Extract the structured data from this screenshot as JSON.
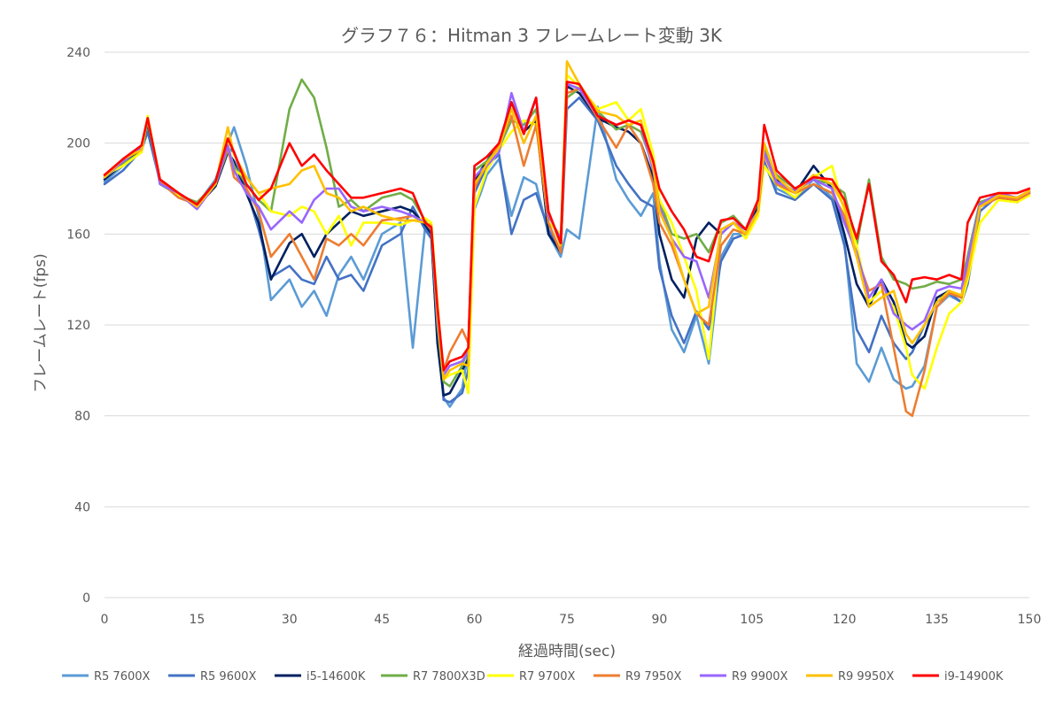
{
  "chart_data": {
    "type": "line",
    "title": "グラフ７６：Hitman 3 フレームレート変動 3K",
    "xlabel": "経過時間(sec)",
    "ylabel": "フレームレート(fps)",
    "xlim": [
      0,
      150
    ],
    "ylim": [
      0,
      240
    ],
    "x_ticks": [
      0,
      15,
      30,
      45,
      60,
      75,
      90,
      105,
      120,
      135,
      150
    ],
    "y_ticks": [
      0,
      40,
      80,
      120,
      160,
      200,
      240
    ],
    "grid": "horizontal",
    "legend_position": "bottom",
    "x": [
      0,
      3,
      6,
      7,
      9,
      12,
      15,
      18,
      20,
      21,
      23,
      25,
      27,
      30,
      32,
      34,
      36,
      38,
      40,
      42,
      45,
      48,
      50,
      52,
      53,
      54,
      55,
      56,
      58,
      59,
      60,
      61,
      62,
      64,
      66,
      68,
      70,
      72,
      74,
      75,
      77,
      80,
      83,
      85,
      87,
      89,
      90,
      92,
      94,
      96,
      98,
      100,
      102,
      104,
      106,
      107,
      109,
      112,
      115,
      118,
      120,
      122,
      124,
      126,
      128,
      130,
      131,
      133,
      135,
      137,
      139,
      140,
      142,
      145,
      148,
      150
    ],
    "series": [
      {
        "name": "R5 7600X",
        "color": "#5B9BD5",
        "values": [
          183,
          190,
          198,
          206,
          184,
          178,
          173,
          184,
          200,
          207,
          190,
          168,
          131,
          140,
          128,
          135,
          124,
          142,
          150,
          140,
          160,
          165,
          110,
          163,
          160,
          120,
          88,
          84,
          92,
          108,
          171,
          178,
          186,
          193,
          168,
          185,
          182,
          160,
          150,
          162,
          158,
          216,
          184,
          175,
          168,
          178,
          148,
          118,
          108,
          124,
          103,
          150,
          160,
          160,
          172,
          198,
          180,
          176,
          184,
          176,
          157,
          103,
          95,
          110,
          96,
          92,
          93,
          102,
          128,
          133,
          130,
          140,
          172,
          178,
          176,
          179
        ]
      },
      {
        "name": "R5 9600X",
        "color": "#4472C4",
        "values": [
          182,
          188,
          197,
          205,
          183,
          178,
          172,
          183,
          198,
          196,
          180,
          162,
          141,
          146,
          140,
          138,
          150,
          140,
          142,
          135,
          155,
          160,
          172,
          162,
          158,
          115,
          87,
          86,
          90,
          100,
          178,
          184,
          190,
          195,
          160,
          175,
          178,
          162,
          152,
          215,
          220,
          210,
          190,
          182,
          175,
          172,
          145,
          124,
          112,
          126,
          118,
          148,
          158,
          160,
          170,
          192,
          178,
          175,
          182,
          175,
          155,
          118,
          108,
          124,
          112,
          105,
          108,
          120,
          130,
          134,
          130,
          138,
          170,
          177,
          175,
          178
        ]
      },
      {
        "name": "i5-14600K",
        "color": "#002060",
        "values": [
          184,
          191,
          197,
          209,
          183,
          178,
          172,
          181,
          196,
          192,
          178,
          165,
          140,
          156,
          160,
          150,
          160,
          165,
          170,
          168,
          170,
          172,
          170,
          164,
          160,
          112,
          89,
          90,
          100,
          105,
          183,
          188,
          192,
          200,
          218,
          205,
          210,
          160,
          152,
          225,
          222,
          211,
          207,
          205,
          200,
          185,
          160,
          140,
          132,
          158,
          165,
          160,
          165,
          160,
          172,
          196,
          184,
          178,
          190,
          180,
          160,
          138,
          128,
          140,
          130,
          112,
          110,
          115,
          132,
          135,
          132,
          150,
          174,
          176,
          174,
          178
        ]
      },
      {
        "name": "R7 7800X3D",
        "color": "#70AD47",
        "values": [
          185,
          191,
          196,
          210,
          182,
          177,
          174,
          182,
          197,
          190,
          182,
          175,
          170,
          215,
          228,
          220,
          198,
          172,
          175,
          170,
          176,
          178,
          175,
          166,
          162,
          120,
          95,
          93,
          102,
          110,
          188,
          190,
          192,
          198,
          210,
          208,
          215,
          170,
          155,
          220,
          224,
          214,
          206,
          208,
          205,
          190,
          175,
          160,
          158,
          160,
          152,
          165,
          168,
          162,
          175,
          197,
          186,
          180,
          184,
          182,
          178,
          155,
          184,
          150,
          140,
          138,
          136,
          137,
          139,
          138,
          140,
          150,
          174,
          177,
          176,
          179
        ]
      },
      {
        "name": "R7 9700X",
        "color": "#FFFF00",
        "values": [
          186,
          190,
          196,
          212,
          184,
          177,
          173,
          183,
          200,
          188,
          185,
          178,
          170,
          168,
          172,
          170,
          160,
          168,
          155,
          165,
          165,
          164,
          166,
          167,
          165,
          130,
          96,
          98,
          100,
          90,
          172,
          180,
          188,
          197,
          205,
          210,
          208,
          165,
          160,
          230,
          225,
          215,
          218,
          210,
          215,
          195,
          175,
          165,
          150,
          135,
          105,
          160,
          165,
          158,
          168,
          190,
          182,
          176,
          185,
          190,
          170,
          155,
          130,
          135,
          128,
          110,
          98,
          92,
          110,
          125,
          130,
          140,
          165,
          175,
          174,
          177
        ]
      },
      {
        "name": "R9 7950X",
        "color": "#ED7D31",
        "values": [
          186,
          192,
          199,
          211,
          183,
          176,
          173,
          182,
          198,
          185,
          180,
          170,
          150,
          160,
          150,
          140,
          158,
          155,
          160,
          155,
          166,
          167,
          168,
          165,
          162,
          125,
          100,
          108,
          118,
          112,
          180,
          186,
          190,
          200,
          212,
          190,
          208,
          165,
          152,
          222,
          224,
          211,
          198,
          208,
          200,
          182,
          165,
          155,
          140,
          125,
          120,
          155,
          162,
          160,
          170,
          195,
          182,
          178,
          182,
          178,
          168,
          150,
          135,
          138,
          110,
          82,
          80,
          100,
          128,
          134,
          132,
          145,
          172,
          176,
          175,
          178
        ]
      },
      {
        "name": "R9 9900X",
        "color": "#9966FF",
        "values": [
          185,
          192,
          198,
          211,
          182,
          178,
          171,
          182,
          199,
          188,
          178,
          172,
          162,
          170,
          165,
          175,
          180,
          180,
          172,
          170,
          172,
          170,
          168,
          165,
          163,
          122,
          98,
          102,
          104,
          108,
          185,
          188,
          190,
          196,
          222,
          205,
          220,
          168,
          158,
          226,
          224,
          212,
          208,
          210,
          208,
          188,
          172,
          158,
          150,
          148,
          132,
          160,
          165,
          162,
          170,
          196,
          183,
          179,
          184,
          180,
          165,
          152,
          132,
          140,
          125,
          120,
          118,
          122,
          135,
          137,
          136,
          148,
          173,
          178,
          176,
          179
        ]
      },
      {
        "name": "R9 9950X",
        "color": "#FFC000",
        "values": [
          185,
          193,
          197,
          211,
          184,
          178,
          172,
          182,
          207,
          195,
          185,
          178,
          180,
          182,
          188,
          190,
          178,
          176,
          170,
          172,
          168,
          166,
          166,
          165,
          164,
          125,
          96,
          100,
          103,
          102,
          182,
          186,
          191,
          198,
          215,
          200,
          212,
          170,
          155,
          236,
          226,
          214,
          212,
          208,
          210,
          190,
          170,
          158,
          140,
          125,
          128,
          162,
          165,
          160,
          170,
          200,
          185,
          178,
          186,
          182,
          172,
          150,
          128,
          132,
          135,
          116,
          112,
          120,
          130,
          135,
          133,
          142,
          172,
          177,
          176,
          179
        ]
      },
      {
        "name": "i9-14900K",
        "color": "#FF0000",
        "values": [
          186,
          193,
          199,
          211,
          184,
          178,
          173,
          183,
          202,
          196,
          182,
          175,
          180,
          200,
          190,
          195,
          188,
          182,
          176,
          176,
          178,
          180,
          178,
          165,
          163,
          128,
          100,
          104,
          106,
          110,
          190,
          192,
          194,
          200,
          218,
          204,
          220,
          170,
          156,
          227,
          226,
          212,
          208,
          210,
          208,
          192,
          180,
          170,
          162,
          150,
          148,
          166,
          167,
          162,
          175,
          208,
          188,
          180,
          185,
          184,
          175,
          158,
          182,
          148,
          142,
          130,
          140,
          141,
          140,
          142,
          140,
          165,
          176,
          178,
          178,
          180
        ]
      }
    ]
  }
}
